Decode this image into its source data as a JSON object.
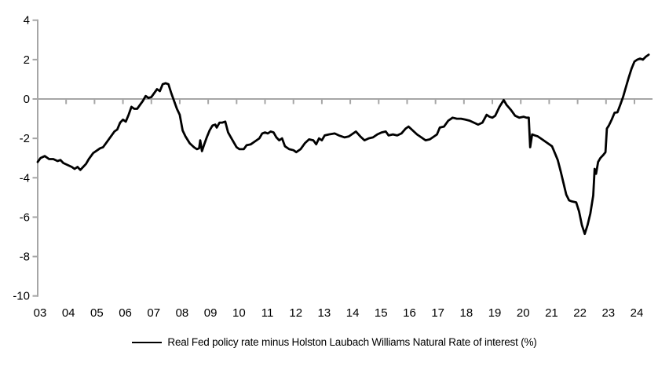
{
  "chart_data": {
    "type": "line",
    "title": "",
    "xlabel": "",
    "ylabel": "",
    "ylim": [
      -10,
      4
    ],
    "xlim": [
      2003,
      2024.65
    ],
    "grid": "zero-line-only",
    "legend_position": "bottom-center",
    "axis_color": "#A6A6A6",
    "zero_line_color": "#A6A6A6",
    "text_color": "#000000",
    "y_tick_labels": [
      "4",
      "2",
      "0",
      "-2",
      "-4",
      "-6",
      "-8",
      "-10"
    ],
    "x_tick_labels": [
      "03",
      "04",
      "05",
      "06",
      "07",
      "08",
      "09",
      "10",
      "11",
      "12",
      "13",
      "14",
      "15",
      "16",
      "17",
      "18",
      "19",
      "20",
      "21",
      "22",
      "23",
      "24"
    ],
    "series": [
      {
        "name": "Real Fed policy rate minus Holston Laubach Williams Natural Rate of interest (%)",
        "color": "#000000",
        "x": [
          2003.0,
          2003.1,
          2003.25,
          2003.4,
          2003.55,
          2003.7,
          2003.8,
          2003.9,
          2004.05,
          2004.2,
          2004.3,
          2004.4,
          2004.5,
          2004.6,
          2004.7,
          2004.8,
          2004.95,
          2005.1,
          2005.2,
          2005.3,
          2005.4,
          2005.5,
          2005.6,
          2005.7,
          2005.8,
          2005.9,
          2006.0,
          2006.1,
          2006.2,
          2006.3,
          2006.4,
          2006.5,
          2006.6,
          2006.7,
          2006.8,
          2006.9,
          2007.0,
          2007.1,
          2007.2,
          2007.3,
          2007.4,
          2007.5,
          2007.6,
          2007.7,
          2007.8,
          2007.9,
          2008.0,
          2008.1,
          2008.2,
          2008.35,
          2008.5,
          2008.6,
          2008.68,
          2008.72,
          2008.78,
          2008.85,
          2008.95,
          2009.05,
          2009.15,
          2009.25,
          2009.3,
          2009.4,
          2009.5,
          2009.6,
          2009.7,
          2009.8,
          2009.9,
          2010.0,
          2010.1,
          2010.25,
          2010.35,
          2010.5,
          2010.65,
          2010.8,
          2010.9,
          2011.0,
          2011.1,
          2011.2,
          2011.3,
          2011.4,
          2011.5,
          2011.6,
          2011.7,
          2011.85,
          2012.0,
          2012.1,
          2012.25,
          2012.4,
          2012.55,
          2012.7,
          2012.8,
          2012.9,
          2013.0,
          2013.1,
          2013.25,
          2013.45,
          2013.6,
          2013.8,
          2013.95,
          2014.1,
          2014.2,
          2014.35,
          2014.5,
          2014.65,
          2014.8,
          2014.95,
          2015.1,
          2015.25,
          2015.35,
          2015.5,
          2015.65,
          2015.8,
          2015.95,
          2016.05,
          2016.2,
          2016.35,
          2016.5,
          2016.65,
          2016.8,
          2016.95,
          2017.05,
          2017.15,
          2017.3,
          2017.45,
          2017.6,
          2017.75,
          2017.9,
          2018.05,
          2018.2,
          2018.35,
          2018.5,
          2018.65,
          2018.8,
          2018.9,
          2019.0,
          2019.1,
          2019.25,
          2019.4,
          2019.5,
          2019.65,
          2019.8,
          2019.95,
          2020.1,
          2020.2,
          2020.28,
          2020.33,
          2020.4,
          2020.5,
          2020.6,
          2020.7,
          2020.8,
          2020.95,
          2021.1,
          2021.2,
          2021.3,
          2021.4,
          2021.5,
          2021.6,
          2021.7,
          2021.8,
          2021.95,
          2022.05,
          2022.15,
          2022.25,
          2022.35,
          2022.45,
          2022.55,
          2022.6,
          2022.65,
          2022.72,
          2022.8,
          2022.9,
          2022.98,
          2023.03,
          2023.1,
          2023.2,
          2023.3,
          2023.4,
          2023.5,
          2023.6,
          2023.7,
          2023.8,
          2023.9,
          2024.0,
          2024.1,
          2024.2,
          2024.3,
          2024.4,
          2024.5
        ],
        "y": [
          -3.2,
          -3.0,
          -2.9,
          -3.05,
          -3.05,
          -3.15,
          -3.1,
          -3.25,
          -3.35,
          -3.45,
          -3.55,
          -3.45,
          -3.6,
          -3.45,
          -3.3,
          -3.05,
          -2.75,
          -2.6,
          -2.5,
          -2.45,
          -2.25,
          -2.05,
          -1.85,
          -1.65,
          -1.55,
          -1.2,
          -1.05,
          -1.15,
          -0.8,
          -0.4,
          -0.5,
          -0.5,
          -0.3,
          -0.1,
          0.15,
          0.05,
          0.1,
          0.3,
          0.5,
          0.4,
          0.75,
          0.8,
          0.75,
          0.3,
          -0.1,
          -0.5,
          -0.8,
          -1.6,
          -1.9,
          -2.25,
          -2.45,
          -2.55,
          -2.5,
          -2.1,
          -2.65,
          -2.35,
          -1.95,
          -1.6,
          -1.35,
          -1.3,
          -1.45,
          -1.2,
          -1.2,
          -1.15,
          -1.7,
          -1.95,
          -2.2,
          -2.45,
          -2.55,
          -2.55,
          -2.35,
          -2.3,
          -2.15,
          -2.0,
          -1.75,
          -1.7,
          -1.75,
          -1.65,
          -1.7,
          -1.95,
          -2.1,
          -2.0,
          -2.4,
          -2.55,
          -2.6,
          -2.7,
          -2.55,
          -2.25,
          -2.05,
          -2.1,
          -2.3,
          -2.0,
          -2.1,
          -1.85,
          -1.8,
          -1.75,
          -1.85,
          -1.95,
          -1.9,
          -1.75,
          -1.65,
          -1.9,
          -2.1,
          -2.0,
          -1.95,
          -1.8,
          -1.7,
          -1.65,
          -1.85,
          -1.8,
          -1.85,
          -1.75,
          -1.5,
          -1.4,
          -1.6,
          -1.8,
          -1.95,
          -2.1,
          -2.05,
          -1.9,
          -1.8,
          -1.45,
          -1.4,
          -1.1,
          -0.95,
          -1.0,
          -1.0,
          -1.05,
          -1.1,
          -1.2,
          -1.3,
          -1.2,
          -0.8,
          -0.9,
          -0.95,
          -0.85,
          -0.4,
          -0.05,
          -0.3,
          -0.55,
          -0.85,
          -0.95,
          -0.9,
          -0.95,
          -0.95,
          -2.45,
          -1.8,
          -1.85,
          -1.9,
          -2.0,
          -2.1,
          -2.25,
          -2.4,
          -2.75,
          -3.1,
          -3.65,
          -4.25,
          -4.85,
          -5.15,
          -5.2,
          -5.25,
          -5.7,
          -6.4,
          -6.85,
          -6.4,
          -5.8,
          -4.9,
          -3.55,
          -3.8,
          -3.2,
          -3.0,
          -2.85,
          -2.7,
          -1.5,
          -1.35,
          -1.05,
          -0.7,
          -0.68,
          -0.3,
          0.1,
          0.6,
          1.1,
          1.55,
          1.9,
          2.0,
          2.05,
          2.0,
          2.15,
          2.25
        ]
      }
    ]
  }
}
